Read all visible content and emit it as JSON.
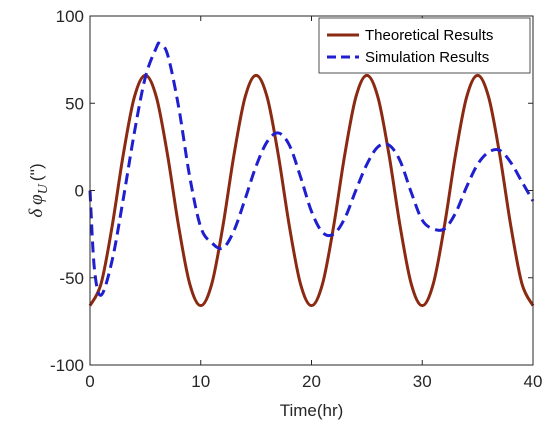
{
  "chart_data": {
    "type": "line",
    "xlabel": "Time(hr)",
    "ylabel": {
      "prefix": "δ",
      "symbol": "φ",
      "subscript": "U",
      "unit": "('')"
    },
    "xlim": [
      0,
      40
    ],
    "ylim": [
      -100,
      100
    ],
    "xticks": [
      0,
      10,
      20,
      30,
      40
    ],
    "yticks": [
      -100,
      -50,
      0,
      50,
      100
    ],
    "grid": false,
    "legend_position": "top-right",
    "series": [
      {
        "name": "Theoretical Results",
        "color": "#8B2A12",
        "style": "solid",
        "x": [
          0,
          1,
          2,
          3,
          4,
          5,
          6,
          7,
          8,
          9,
          10,
          11,
          12,
          13,
          14,
          15,
          16,
          17,
          18,
          19,
          20,
          21,
          22,
          23,
          24,
          25,
          26,
          27,
          28,
          29,
          30,
          31,
          32,
          33,
          34,
          35,
          36,
          37,
          38,
          39,
          40
        ],
        "values": [
          -66,
          -53.4,
          -20.4,
          20.4,
          53.4,
          66,
          53.4,
          20.4,
          -20.4,
          -53.4,
          -66,
          -53.4,
          -20.4,
          20.4,
          53.4,
          66,
          53.4,
          20.4,
          -20.4,
          -53.4,
          -66,
          -53.4,
          -20.4,
          20.4,
          53.4,
          66,
          53.4,
          20.4,
          -20.4,
          -53.4,
          -66,
          -53.4,
          -20.4,
          20.4,
          53.4,
          66,
          53.4,
          20.4,
          -20.4,
          -53.4,
          -66
        ]
      },
      {
        "name": "Simulation Results",
        "color": "#1F1FD0",
        "style": "dashed",
        "x": [
          0,
          0.4,
          1,
          2,
          3,
          4,
          5,
          6,
          6.3,
          7,
          8,
          9,
          10,
          11,
          12,
          13,
          14,
          15,
          16,
          17,
          18,
          19,
          20,
          21,
          22,
          23,
          24,
          25,
          26,
          27,
          28,
          29,
          30,
          31,
          32,
          33,
          34,
          35,
          36,
          37,
          38,
          39,
          40
        ],
        "values": [
          0,
          -45,
          -60,
          -40,
          -5,
          33,
          65,
          82,
          84,
          78,
          48,
          8,
          -21,
          -30,
          -33,
          -23,
          -5,
          14,
          28,
          33,
          26,
          8,
          -12,
          -24,
          -25,
          -16,
          0,
          15,
          25,
          26,
          17,
          -1,
          -17,
          -22,
          -22,
          -13,
          2,
          15,
          22,
          23,
          16,
          5,
          -6
        ]
      }
    ]
  }
}
